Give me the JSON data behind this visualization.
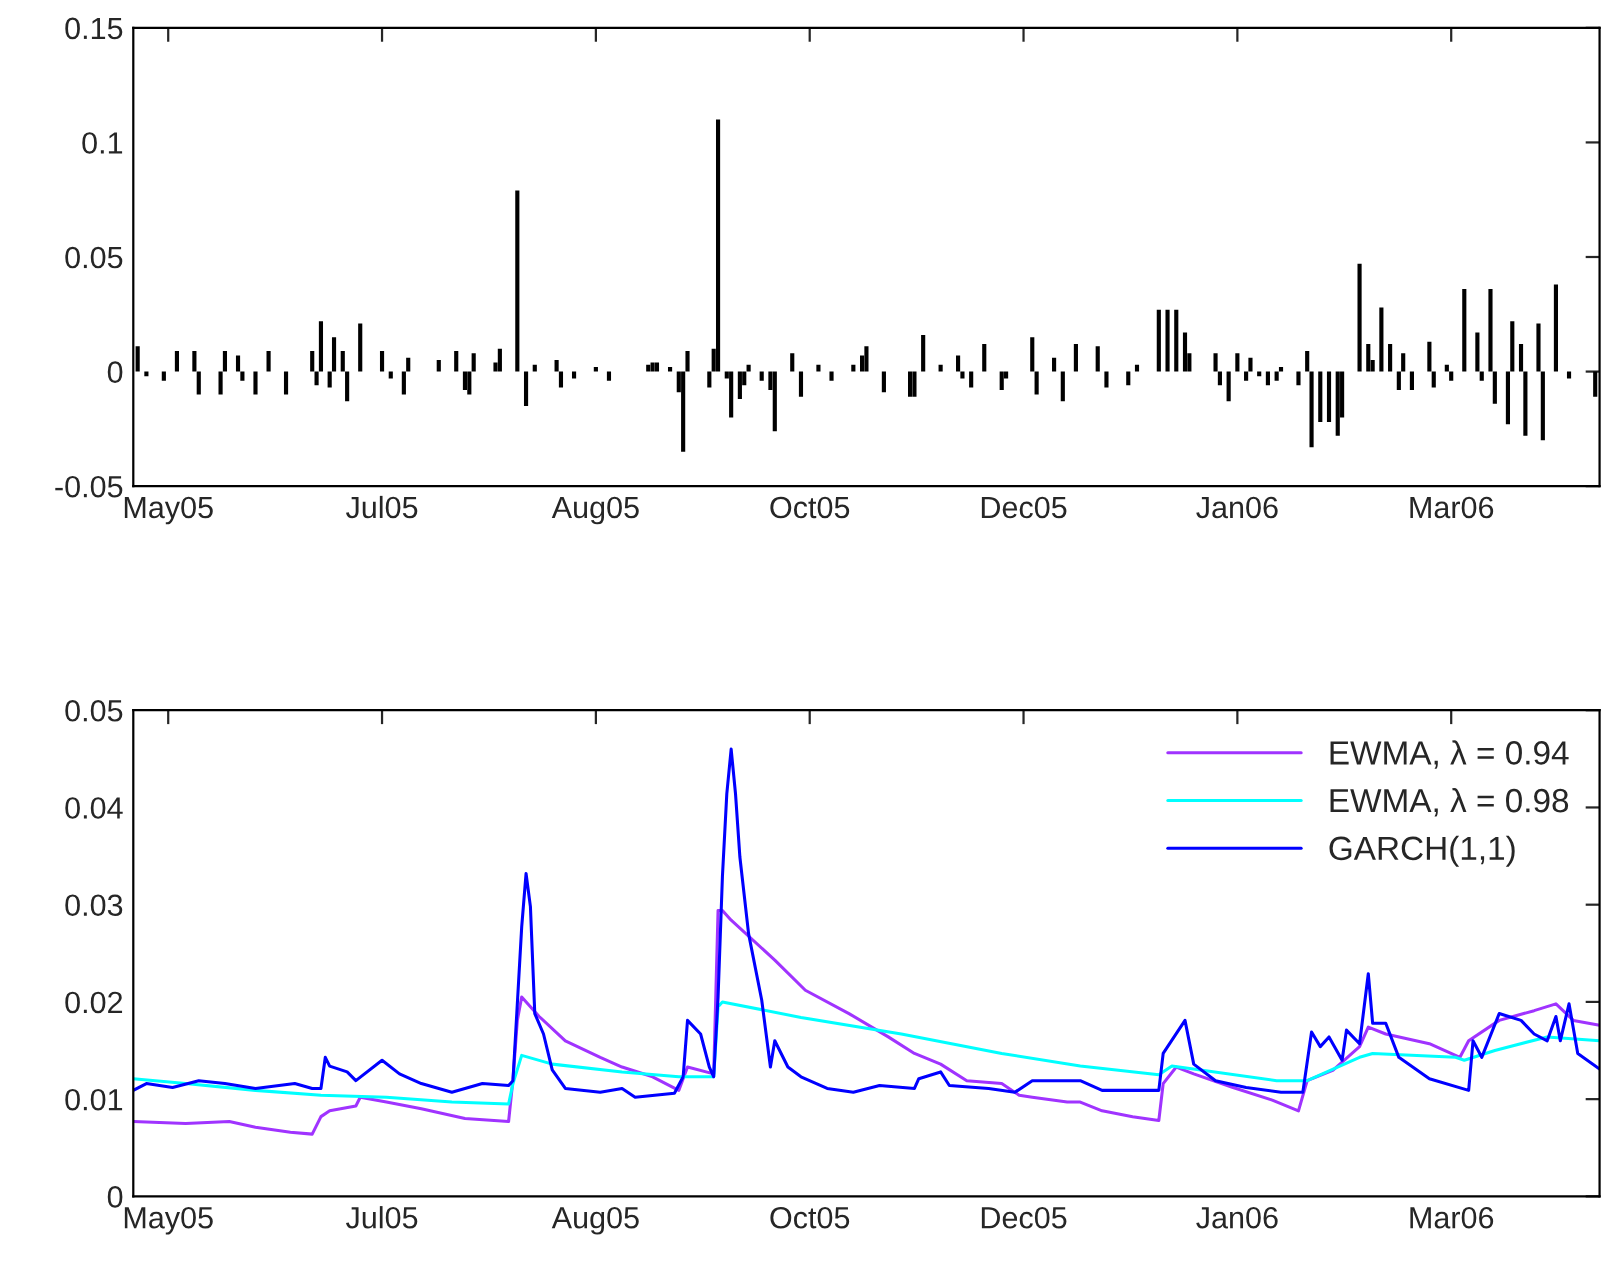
{
  "chart_data": [
    {
      "type": "bar",
      "color": "#000000",
      "x": [
        "2005-05-13",
        "2005-05-15",
        "2005-05-19",
        "2005-05-22",
        "2005-05-26",
        "2005-05-27",
        "2005-06-01",
        "2005-06-02",
        "2005-06-05",
        "2005-06-06",
        "2005-06-09",
        "2005-06-12",
        "2005-06-16",
        "2005-06-22",
        "2005-06-23",
        "2005-06-24",
        "2005-06-26",
        "2005-06-27",
        "2005-06-29",
        "2005-06-30",
        "2005-07-03",
        "2005-07-08",
        "2005-07-10",
        "2005-07-13",
        "2005-07-14",
        "2005-07-21",
        "2005-07-25",
        "2005-07-27",
        "2005-07-28",
        "2005-07-29",
        "2005-08-03",
        "2005-08-04",
        "2005-08-08",
        "2005-08-10",
        "2005-08-12",
        "2005-08-17",
        "2005-08-18",
        "2005-08-21",
        "2005-08-26",
        "2005-08-29",
        "2005-09-07",
        "2005-09-08",
        "2005-09-09",
        "2005-09-12",
        "2005-09-14",
        "2005-09-15",
        "2005-09-16",
        "2005-09-21",
        "2005-09-22",
        "2005-09-23",
        "2005-09-25",
        "2005-09-26",
        "2005-09-28",
        "2005-09-29",
        "2005-09-30",
        "2005-10-03",
        "2005-10-05",
        "2005-10-06",
        "2005-10-10",
        "2005-10-12",
        "2005-10-16",
        "2005-10-19",
        "2005-10-24",
        "2005-10-26",
        "2005-10-27",
        "2005-10-31",
        "2005-11-06",
        "2005-11-07",
        "2005-11-09",
        "2005-11-13",
        "2005-11-17",
        "2005-11-18",
        "2005-11-20",
        "2005-11-23",
        "2005-11-27",
        "2005-11-28",
        "2005-12-04",
        "2005-12-05",
        "2005-12-09",
        "2005-12-11",
        "2005-12-14",
        "2005-12-19",
        "2005-12-21",
        "2005-12-26",
        "2005-12-28",
        "2006-01-02",
        "2006-01-04",
        "2006-01-06",
        "2006-01-08",
        "2006-01-09",
        "2006-01-15",
        "2006-01-16",
        "2006-01-18",
        "2006-01-20",
        "2006-01-22",
        "2006-01-23",
        "2006-01-25",
        "2006-01-27",
        "2006-01-29",
        "2006-01-30",
        "2006-02-03",
        "2006-02-05",
        "2006-02-06",
        "2006-02-08",
        "2006-02-10",
        "2006-02-12",
        "2006-02-13",
        "2006-02-17",
        "2006-02-19",
        "2006-02-20",
        "2006-02-22",
        "2006-02-24",
        "2006-02-26",
        "2006-02-27",
        "2006-03-01",
        "2006-03-05",
        "2006-03-06",
        "2006-03-09",
        "2006-03-10",
        "2006-03-13",
        "2006-03-16",
        "2006-03-17",
        "2006-03-19",
        "2006-03-20",
        "2006-03-23",
        "2006-03-24",
        "2006-03-26",
        "2006-03-27",
        "2006-03-30",
        "2006-03-31",
        "2006-04-03",
        "2006-04-06",
        "2006-04-12"
      ],
      "values": [
        0.011,
        -0.002,
        -0.004,
        0.009,
        0.009,
        -0.01,
        -0.01,
        0.009,
        0.007,
        -0.004,
        -0.01,
        0.009,
        -0.01,
        0.009,
        -0.006,
        0.022,
        -0.007,
        0.015,
        0.009,
        -0.013,
        0.021,
        0.009,
        -0.003,
        -0.01,
        0.006,
        0.005,
        0.009,
        -0.008,
        -0.01,
        0.008,
        0.004,
        0.01,
        0.079,
        -0.015,
        0.003,
        0.005,
        -0.007,
        -0.003,
        0.002,
        -0.004,
        0.003,
        0.004,
        0.004,
        0.002,
        -0.009,
        -0.035,
        0.009,
        -0.007,
        0.01,
        0.11,
        -0.003,
        -0.02,
        -0.012,
        -0.006,
        0.003,
        -0.004,
        -0.008,
        -0.026,
        0.008,
        -0.011,
        0.003,
        -0.004,
        0.003,
        0.007,
        0.011,
        -0.009,
        -0.011,
        -0.011,
        0.016,
        0.003,
        0.007,
        -0.003,
        -0.007,
        0.012,
        -0.008,
        -0.003,
        0.015,
        -0.01,
        0.006,
        -0.013,
        0.012,
        0.011,
        -0.007,
        -0.006,
        0.003,
        0.027,
        0.027,
        0.027,
        0.017,
        0.008,
        0.008,
        -0.006,
        -0.013,
        0.008,
        -0.004,
        0.006,
        -0.002,
        -0.006,
        -0.004,
        0.002,
        -0.006,
        0.009,
        -0.033,
        -0.022,
        -0.022,
        -0.028,
        -0.02,
        0.047,
        0.012,
        0.005,
        0.028,
        0.012,
        -0.008,
        0.008,
        -0.008,
        0.013,
        -0.007,
        0.003,
        -0.004,
        0.036,
        0.017,
        -0.004,
        0.036,
        -0.014,
        -0.023,
        0.022,
        0.012,
        -0.028,
        0.021,
        -0.03,
        0.038,
        -0.003,
        -0.011
      ],
      "xlim": [
        "2005-05-12",
        "2006-04-13"
      ],
      "ylim": [
        -0.05,
        0.15
      ],
      "xticks": [
        {
          "value": "2005-05-20",
          "label": "May05"
        },
        {
          "value": "2005-07-08",
          "label": "Jul05"
        },
        {
          "value": "2005-08-26",
          "label": "Aug05"
        },
        {
          "value": "2005-10-14",
          "label": "Oct05"
        },
        {
          "value": "2005-12-02",
          "label": "Dec05"
        },
        {
          "value": "2006-01-20",
          "label": "Jan06"
        },
        {
          "value": "2006-03-10",
          "label": "Mar06"
        }
      ],
      "yticks": [
        -0.05,
        0,
        0.05,
        0.1,
        0.15
      ]
    },
    {
      "type": "line",
      "legend": "top right",
      "xlim": [
        "2005-05-12",
        "2006-04-13"
      ],
      "ylim": [
        0,
        0.05
      ],
      "xticks": [
        {
          "value": "2005-05-20",
          "label": "May05"
        },
        {
          "value": "2005-07-08",
          "label": "Jul05"
        },
        {
          "value": "2005-08-26",
          "label": "Aug05"
        },
        {
          "value": "2005-10-14",
          "label": "Oct05"
        },
        {
          "value": "2005-12-02",
          "label": "Dec05"
        },
        {
          "value": "2006-01-20",
          "label": "Jan06"
        },
        {
          "value": "2006-03-10",
          "label": "Mar06"
        }
      ],
      "yticks": [
        0,
        0.01,
        0.02,
        0.03,
        0.04,
        0.05
      ],
      "series": [
        {
          "name": "EWMA, λ = 0.94",
          "color": "#a033ff",
          "x": [
            "2005-05-12",
            "2005-05-24",
            "2005-06-03",
            "2005-06-09",
            "2005-06-17",
            "2005-06-22",
            "2005-06-24",
            "2005-06-26",
            "2005-07-02",
            "2005-07-03",
            "2005-07-09",
            "2005-07-17",
            "2005-07-27",
            "2005-08-06",
            "2005-08-07",
            "2005-08-08",
            "2005-08-09",
            "2005-08-11",
            "2005-08-13",
            "2005-08-19",
            "2005-08-27",
            "2005-09-01",
            "2005-09-08",
            "2005-09-14",
            "2005-09-16",
            "2005-09-22",
            "2005-09-23",
            "2005-09-24",
            "2005-09-26",
            "2005-10-06",
            "2005-10-13",
            "2005-10-23",
            "2005-11-01",
            "2005-11-07",
            "2005-11-13",
            "2005-11-19",
            "2005-11-27",
            "2005-12-01",
            "2005-12-04",
            "2005-12-12",
            "2005-12-15",
            "2005-12-20",
            "2005-12-27",
            "2006-01-02",
            "2006-01-03",
            "2006-01-06",
            "2006-01-10",
            "2006-01-19",
            "2006-01-28",
            "2006-02-03",
            "2006-02-05",
            "2006-02-11",
            "2006-02-17",
            "2006-02-19",
            "2006-02-23",
            "2006-03-05",
            "2006-03-12",
            "2006-03-14",
            "2006-03-21",
            "2006-03-29",
            "2006-04-03",
            "2006-04-07",
            "2006-04-13"
          ],
          "values": [
            0.0077,
            0.0075,
            0.0077,
            0.0071,
            0.0066,
            0.0064,
            0.0082,
            0.0088,
            0.0093,
            0.0102,
            0.0097,
            0.009,
            0.008,
            0.0077,
            0.012,
            0.0181,
            0.0205,
            0.0195,
            0.0185,
            0.016,
            0.0143,
            0.0133,
            0.0123,
            0.0109,
            0.0133,
            0.0126,
            0.0294,
            0.0294,
            0.0284,
            0.0243,
            0.0212,
            0.0188,
            0.0164,
            0.0147,
            0.0136,
            0.0119,
            0.0116,
            0.0104,
            0.0102,
            0.0097,
            0.0097,
            0.0088,
            0.0082,
            0.0078,
            0.0116,
            0.0133,
            0.0126,
            0.0112,
            0.0099,
            0.0088,
            0.0119,
            0.013,
            0.0154,
            0.0174,
            0.0167,
            0.0157,
            0.0143,
            0.016,
            0.0181,
            0.0191,
            0.0198,
            0.0181,
            0.0176
          ]
        },
        {
          "name": "EWMA, λ = 0.98",
          "color": "#00ffff",
          "x": [
            "2005-05-12",
            "2005-05-24",
            "2005-06-09",
            "2005-06-24",
            "2005-07-09",
            "2005-07-24",
            "2005-08-06",
            "2005-08-07",
            "2005-08-09",
            "2005-08-16",
            "2005-09-01",
            "2005-09-14",
            "2005-09-22",
            "2005-09-23",
            "2005-09-24",
            "2005-10-12",
            "2005-11-04",
            "2005-11-27",
            "2005-12-15",
            "2006-01-02",
            "2006-01-05",
            "2006-01-29",
            "2006-02-05",
            "2006-02-17",
            "2006-02-20",
            "2006-03-11",
            "2006-03-13",
            "2006-03-20",
            "2006-04-01",
            "2006-04-13"
          ],
          "values": [
            0.0121,
            0.0116,
            0.0109,
            0.0104,
            0.0102,
            0.0097,
            0.0095,
            0.0116,
            0.0145,
            0.0136,
            0.0128,
            0.0123,
            0.0123,
            0.0195,
            0.02,
            0.0184,
            0.0167,
            0.0147,
            0.0134,
            0.0125,
            0.0134,
            0.0119,
            0.0119,
            0.0143,
            0.0147,
            0.0143,
            0.014,
            0.015,
            0.0164,
            0.016
          ]
        },
        {
          "name": "GARCH(1,1)",
          "color": "#0000ff",
          "x": [
            "2005-05-12",
            "2005-05-15",
            "2005-05-21",
            "2005-05-27",
            "2005-06-02",
            "2005-06-09",
            "2005-06-18",
            "2005-06-22",
            "2005-06-24",
            "2005-06-25",
            "2005-06-26",
            "2005-06-30",
            "2005-07-02",
            "2005-07-08",
            "2005-07-12",
            "2005-07-17",
            "2005-07-24",
            "2005-07-31",
            "2005-08-06",
            "2005-08-07",
            "2005-08-09",
            "2005-08-10",
            "2005-08-11",
            "2005-08-12",
            "2005-08-14",
            "2005-08-16",
            "2005-08-19",
            "2005-08-27",
            "2005-09-01",
            "2005-09-04",
            "2005-09-13",
            "2005-09-15",
            "2005-09-16",
            "2005-09-19",
            "2005-09-21",
            "2005-09-22",
            "2005-09-23",
            "2005-09-24",
            "2005-09-25",
            "2005-09-26",
            "2005-09-27",
            "2005-09-28",
            "2005-09-30",
            "2005-10-03",
            "2005-10-05",
            "2005-10-06",
            "2005-10-09",
            "2005-10-12",
            "2005-10-18",
            "2005-10-24",
            "2005-10-30",
            "2005-11-07",
            "2005-11-08",
            "2005-11-13",
            "2005-11-15",
            "2005-11-24",
            "2005-11-30",
            "2005-12-04",
            "2005-12-12",
            "2005-12-15",
            "2005-12-20",
            "2005-12-27",
            "2006-01-02",
            "2006-01-03",
            "2006-01-08",
            "2006-01-10",
            "2006-01-15",
            "2006-01-22",
            "2006-01-30",
            "2006-02-04",
            "2006-02-06",
            "2006-02-08",
            "2006-02-10",
            "2006-02-13",
            "2006-02-14",
            "2006-02-17",
            "2006-02-19",
            "2006-02-20",
            "2006-02-23",
            "2006-02-26",
            "2006-03-05",
            "2006-03-14",
            "2006-03-15",
            "2006-03-17",
            "2006-03-21",
            "2006-03-26",
            "2006-03-29",
            "2006-04-01",
            "2006-04-03",
            "2006-04-04",
            "2006-04-06",
            "2006-04-08",
            "2006-04-13"
          ],
          "values": [
            0.0109,
            0.0116,
            0.0112,
            0.0119,
            0.0116,
            0.0111,
            0.0116,
            0.0111,
            0.0111,
            0.0143,
            0.0134,
            0.0128,
            0.0119,
            0.014,
            0.0126,
            0.0116,
            0.0107,
            0.0116,
            0.0114,
            0.0119,
            0.0277,
            0.0332,
            0.0298,
            0.0188,
            0.0167,
            0.013,
            0.0111,
            0.0107,
            0.0111,
            0.0102,
            0.0106,
            0.0123,
            0.0181,
            0.0167,
            0.0133,
            0.0123,
            0.0205,
            0.0329,
            0.0414,
            0.046,
            0.0414,
            0.0349,
            0.027,
            0.0202,
            0.0133,
            0.016,
            0.0133,
            0.0123,
            0.0111,
            0.0107,
            0.0114,
            0.0111,
            0.0121,
            0.0128,
            0.0114,
            0.0111,
            0.0107,
            0.0119,
            0.0119,
            0.0119,
            0.0109,
            0.0109,
            0.0109,
            0.0147,
            0.0181,
            0.0136,
            0.0119,
            0.0112,
            0.0107,
            0.0107,
            0.0169,
            0.0154,
            0.0164,
            0.014,
            0.0171,
            0.0157,
            0.0229,
            0.0178,
            0.0178,
            0.0143,
            0.0121,
            0.0109,
            0.016,
            0.0143,
            0.0188,
            0.0181,
            0.0167,
            0.016,
            0.0185,
            0.016,
            0.0198,
            0.0147,
            0.0131
          ]
        }
      ]
    }
  ]
}
